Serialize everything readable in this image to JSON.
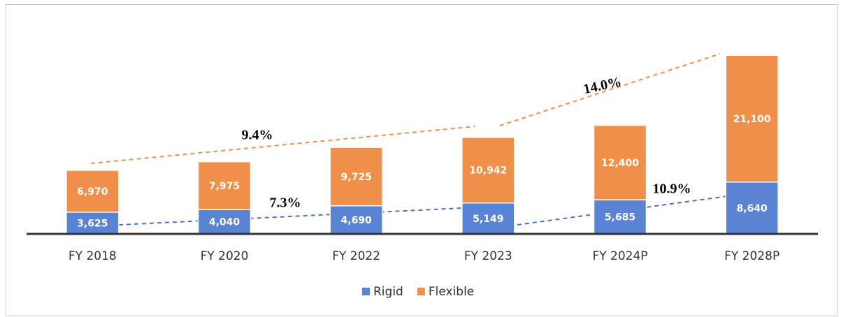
{
  "chart_data": {
    "type": "stacked_bar",
    "categories": [
      "FY 2018",
      "FY 2020",
      "FY 2022",
      "FY 2023",
      "FY 2024P",
      "FY 2028P"
    ],
    "series": [
      {
        "name": "Rigid",
        "color": "#5b83d4",
        "values": [
          3625,
          4040,
          4690,
          5149,
          5685,
          8640
        ],
        "value_labels": [
          "3,625",
          "4,040",
          "4,690",
          "5,149",
          "5,685",
          "8,640"
        ]
      },
      {
        "name": "Flexible",
        "color": "#ef8f49",
        "values": [
          6970,
          7975,
          9725,
          10942,
          12400,
          21100
        ],
        "value_labels": [
          "6,970",
          "7,975",
          "9,725",
          "10,942",
          "12,400",
          "21,100"
        ]
      }
    ],
    "ylim": [
      0,
      30000
    ],
    "legend": "bottom",
    "annotations": [
      "9.4%",
      "7.3%",
      "14.0%",
      "10.9%"
    ]
  }
}
